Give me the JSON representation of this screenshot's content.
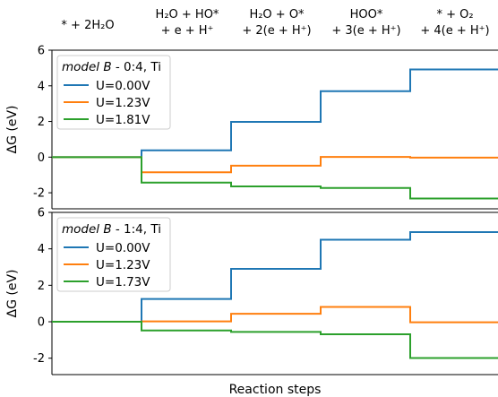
{
  "chart_data": {
    "type": "line",
    "steps": [
      [
        "* + 2H₂O"
      ],
      [
        "H₂O + HO*",
        "+ e + H⁺"
      ],
      [
        "H₂O + O*",
        "+ 2(e + H⁺)"
      ],
      [
        "HOO*",
        "+ 3(e + H⁺)"
      ],
      [
        "* + O₂",
        "+ 4(e + H⁺)"
      ]
    ],
    "xlabel": "Reaction steps",
    "ylabel": "ΔG (eV)",
    "ylim": [
      -2.9,
      6.0
    ],
    "yticks": [
      -2,
      0,
      2,
      4,
      6
    ],
    "ytick_labels": [
      "-2",
      "0",
      "2",
      "4",
      "6"
    ],
    "panels": [
      {
        "legend_title_italic": "model B",
        "legend_title_rest": " - 0:4, Ti",
        "series": [
          {
            "name": "U=0.00V",
            "color": "#1f77b4",
            "values": [
              0.0,
              0.38,
              1.98,
              3.7,
              4.92
            ]
          },
          {
            "name": "U=1.23V",
            "color": "#ff7f0e",
            "values": [
              0.0,
              -0.85,
              -0.48,
              0.01,
              -0.03
            ]
          },
          {
            "name": "U=1.81V",
            "color": "#2ca02c",
            "values": [
              0.0,
              -1.43,
              -1.64,
              -1.73,
              -2.32
            ]
          }
        ]
      },
      {
        "legend_title_italic": "model B",
        "legend_title_rest": " - 1:4, Ti",
        "series": [
          {
            "name": "U=0.00V",
            "color": "#1f77b4",
            "values": [
              0.0,
              1.25,
              2.9,
              4.5,
              4.92
            ]
          },
          {
            "name": "U=1.23V",
            "color": "#ff7f0e",
            "values": [
              0.0,
              0.02,
              0.44,
              0.81,
              -0.03
            ]
          },
          {
            "name": "U=1.73V",
            "color": "#2ca02c",
            "values": [
              0.0,
              -0.48,
              -0.56,
              -0.69,
              -1.99
            ]
          }
        ]
      }
    ]
  }
}
